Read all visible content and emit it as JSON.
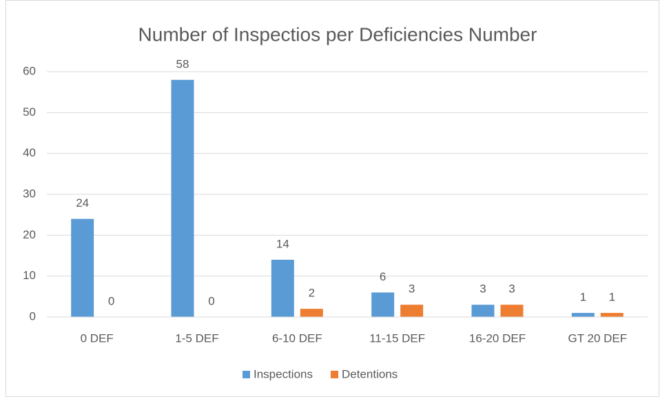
{
  "chart_data": {
    "type": "bar",
    "title": "Number of Inspectios per Deficiencies Number",
    "categories": [
      "0 DEF",
      "1-5 DEF",
      "6-10 DEF",
      "11-15 DEF",
      "16-20 DEF",
      "GT 20 DEF"
    ],
    "series": [
      {
        "name": "Inspections",
        "color": "#5b9bd5",
        "values": [
          24,
          58,
          14,
          6,
          3,
          1
        ]
      },
      {
        "name": "Detentions",
        "color": "#ed7d31",
        "values": [
          0,
          0,
          2,
          3,
          3,
          1
        ]
      }
    ],
    "ylim": [
      0,
      60
    ],
    "yticks": [
      0,
      10,
      20,
      30,
      40,
      50,
      60
    ],
    "grid": true,
    "legend": "bottom"
  }
}
